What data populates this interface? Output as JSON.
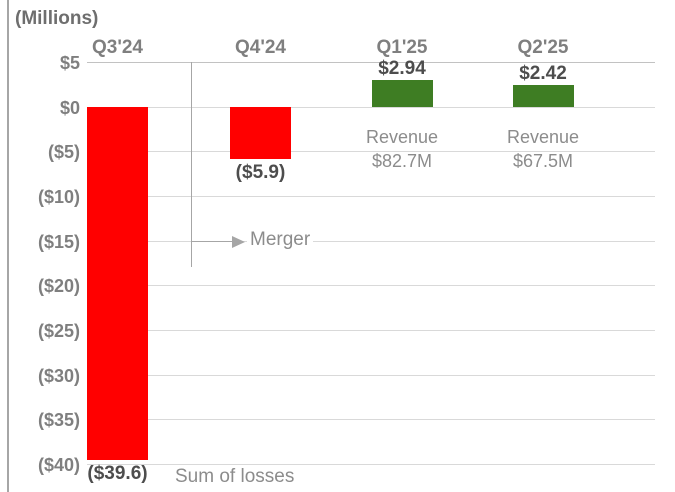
{
  "colors": {
    "loss_bar": "#ff0000",
    "gain_bar": "#3e7d23",
    "grid": "#d9d9d9",
    "grid_top": "#c2c2c2",
    "axis_text": "#7f7f7f",
    "value_text": "#4d4d4d",
    "muted_text": "#8c8c8c",
    "annotation_line": "#a6a6a6",
    "border": "#a6a6a6"
  },
  "chart_data": {
    "type": "bar",
    "title": "(Millions)",
    "categories": [
      "Q3'24",
      "Q4'24",
      "Q1'25",
      "Q2'25"
    ],
    "values": [
      -39.6,
      -5.9,
      2.94,
      2.42
    ],
    "value_labels": [
      "($39.6)",
      "($5.9)",
      "$2.94",
      "$2.42"
    ],
    "bar_colors": [
      "#ff0000",
      "#ff0000",
      "#3e7d23",
      "#3e7d23"
    ],
    "ylabel": "(Millions)",
    "xlabel": "",
    "ylim": [
      -40,
      5
    ],
    "grid": true,
    "legend": false,
    "y_ticks": [
      5,
      0,
      -5,
      -10,
      -15,
      -20,
      -25,
      -30,
      -35,
      -40
    ],
    "y_tick_labels": [
      "$5",
      "$0",
      "($5)",
      "($10)",
      "($15)",
      "($20)",
      "($25)",
      "($30)",
      "($35)",
      "($40)"
    ],
    "annotations": {
      "merger_label": "Merger",
      "merger_at_value": -15,
      "sum_of_losses_label": "Sum of losses",
      "revenue_notes": [
        {
          "category": "Q1'25",
          "label": "Revenue",
          "value": "$82.7M"
        },
        {
          "category": "Q2'25",
          "label": "Revenue",
          "value": "$67.5M"
        }
      ]
    }
  }
}
